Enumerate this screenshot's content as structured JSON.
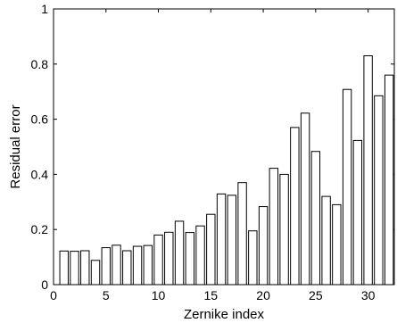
{
  "chart_data": {
    "type": "bar",
    "title": "",
    "xlabel": "Zernike index",
    "ylabel": "Residual error",
    "xlim": [
      0,
      32.5
    ],
    "ylim": [
      0,
      1
    ],
    "xticks": [
      0,
      5,
      10,
      15,
      20,
      25,
      30
    ],
    "yticks": [
      0,
      0.2,
      0.4,
      0.6,
      0.8,
      1
    ],
    "grid": false,
    "x": [
      1,
      2,
      3,
      4,
      5,
      6,
      7,
      8,
      9,
      10,
      11,
      12,
      13,
      14,
      15,
      16,
      17,
      18,
      19,
      20,
      21,
      22,
      23,
      24,
      25,
      26,
      27,
      28,
      29,
      30,
      31,
      32
    ],
    "values": [
      0.122,
      0.121,
      0.123,
      0.088,
      0.134,
      0.143,
      0.123,
      0.139,
      0.142,
      0.18,
      0.19,
      0.23,
      0.189,
      0.213,
      0.255,
      0.329,
      0.324,
      0.37,
      0.195,
      0.283,
      0.422,
      0.4,
      0.57,
      0.622,
      0.483,
      0.32,
      0.29,
      0.708,
      0.523,
      0.83,
      0.685,
      0.76
    ]
  }
}
